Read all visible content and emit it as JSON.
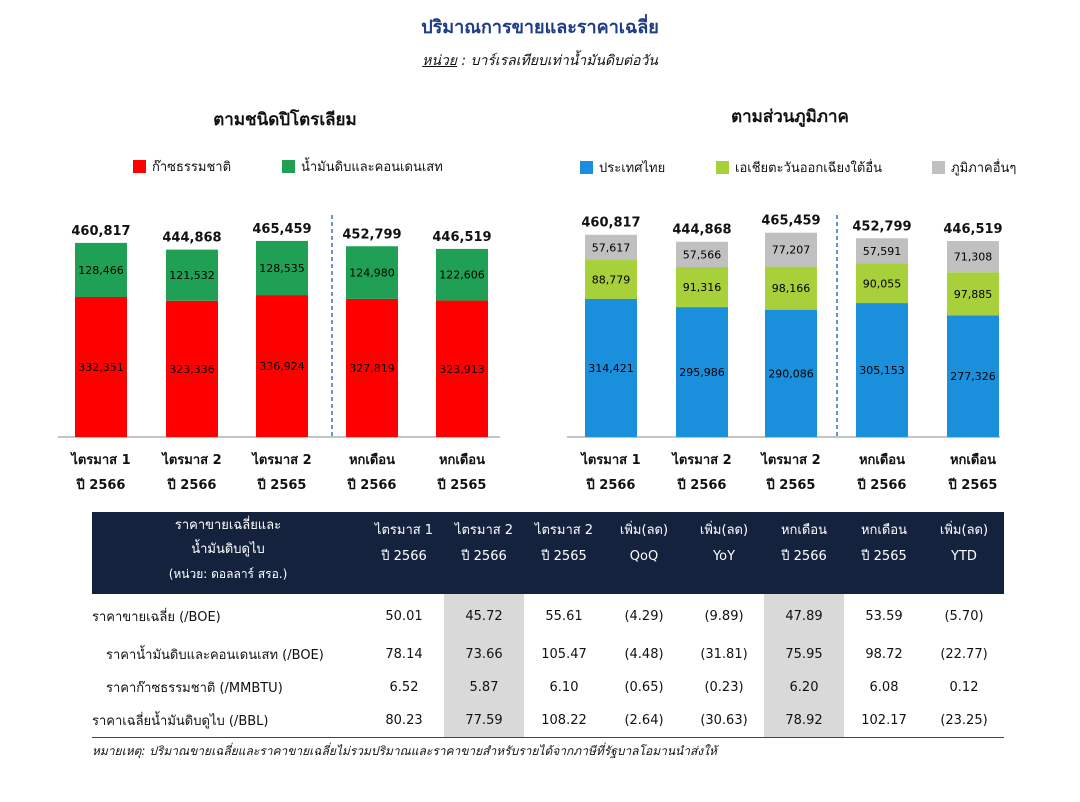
{
  "title": "ปริมาณการขายและราคาเฉลี่ย",
  "subtitle_unit": "หน่วย",
  "subtitle_rest": " : บาร์เรลเทียบเท่าน้ำมันดิบต่อวัน",
  "x_labels": [
    {
      "l1": "ไตรมาส 1",
      "l2": "ปี 2566"
    },
    {
      "l1": "ไตรมาส 2",
      "l2": "ปี 2566"
    },
    {
      "l1": "ไตรมาส 2",
      "l2": "ปี 2565"
    },
    {
      "l1": "หกเดือน",
      "l2": "ปี 2566"
    },
    {
      "l1": "หกเดือน",
      "l2": "ปี 2565"
    }
  ],
  "chart_data": [
    {
      "type": "bar",
      "stacked": true,
      "title": "ตามชนิดปิโตรเลียม",
      "categories": [
        "ไตรมาส 1 ปี 2566",
        "ไตรมาส 2 ปี 2566",
        "ไตรมาส 2 ปี 2565",
        "หกเดือน ปี 2566",
        "หกเดือน ปี 2565"
      ],
      "series": [
        {
          "name": "ก๊าซธรรมชาติ",
          "color": "#ff0000",
          "values": [
            332351,
            323336,
            336924,
            327819,
            323913
          ]
        },
        {
          "name": "น้ำมันดิบและคอนเดนเสท",
          "color": "#1fa055",
          "values": [
            128466,
            121532,
            128535,
            124980,
            122606
          ]
        }
      ],
      "totals": [
        460817,
        444868,
        465459,
        452799,
        446519
      ],
      "legend": "top"
    },
    {
      "type": "bar",
      "stacked": true,
      "title": "ตามส่วนภูมิภาค",
      "categories": [
        "ไตรมาส 1 ปี 2566",
        "ไตรมาส 2 ปี 2566",
        "ไตรมาส 2 ปี 2565",
        "หกเดือน ปี 2566",
        "หกเดือน ปี 2565"
      ],
      "series": [
        {
          "name": "ประเทศไทย",
          "color": "#1a8fdc",
          "values": [
            314421,
            295986,
            290086,
            305153,
            277326
          ]
        },
        {
          "name": "เอเชียตะวันออกเฉียงใต้อื่น",
          "color": "#a8d03a",
          "values": [
            88779,
            91316,
            98166,
            90055,
            97885
          ]
        },
        {
          "name": "ภูมิภาคอื่นๆ",
          "color": "#c0c0c0",
          "values": [
            57617,
            57566,
            77207,
            57591,
            71308
          ]
        }
      ],
      "totals": [
        460817,
        444868,
        465459,
        452799,
        446519
      ],
      "legend": "top"
    }
  ],
  "table": {
    "header_label": [
      "ราคาขายเฉลี่ยและ",
      "น้ำมันดิบดูไบ",
      "(หน่วย: ดอลลาร์ สรอ.)"
    ],
    "columns": [
      [
        "ไตรมาส 1",
        "ปี 2566"
      ],
      [
        "ไตรมาส 2",
        "ปี 2566"
      ],
      [
        "ไตรมาส 2",
        "ปี 2565"
      ],
      [
        "เพิ่ม(ลด)",
        "QoQ"
      ],
      [
        "เพิ่ม(ลด)",
        "YoY"
      ],
      [
        "หกเดือน",
        "ปี 2566"
      ],
      [
        "หกเดือน",
        "ปี 2565"
      ],
      [
        "เพิ่ม(ลด)",
        "YTD"
      ]
    ],
    "rows": [
      {
        "label": "ราคาขายเฉลี่ย (/BOE)",
        "values": [
          "50.01",
          "45.72",
          "55.61",
          "(4.29)",
          "(9.89)",
          "47.89",
          "53.59",
          "(5.70)"
        ]
      },
      {
        "label": "ราคาน้ำมันดิบและคอนเดนเสท (/BOE)",
        "values": [
          "78.14",
          "73.66",
          "105.47",
          "(4.48)",
          "(31.81)",
          "75.95",
          "98.72",
          "(22.77)"
        ]
      },
      {
        "label": "ราคาก๊าซธรรมชาติ (/MMBTU)",
        "values": [
          "6.52",
          "5.87",
          "6.10",
          "(0.65)",
          "(0.23)",
          "6.20",
          "6.08",
          "0.12"
        ]
      },
      {
        "label": "ราคาเฉลี่ยน้ำมันดิบดูไบ (/BBL)",
        "values": [
          "80.23",
          "77.59",
          "108.22",
          "(2.64)",
          "(30.63)",
          "78.92",
          "102.17",
          "(23.25)"
        ]
      }
    ],
    "highlight_columns": [
      1,
      5
    ]
  },
  "footnote": "หมายเหตุ: ปริมาณขายเฉลี่ยและราคาขายเฉลี่ยไม่รวมปริมาณและราคาขายสำหรับรายได้จากภาษีที่รัฐบาลโอมานนำส่งให้"
}
